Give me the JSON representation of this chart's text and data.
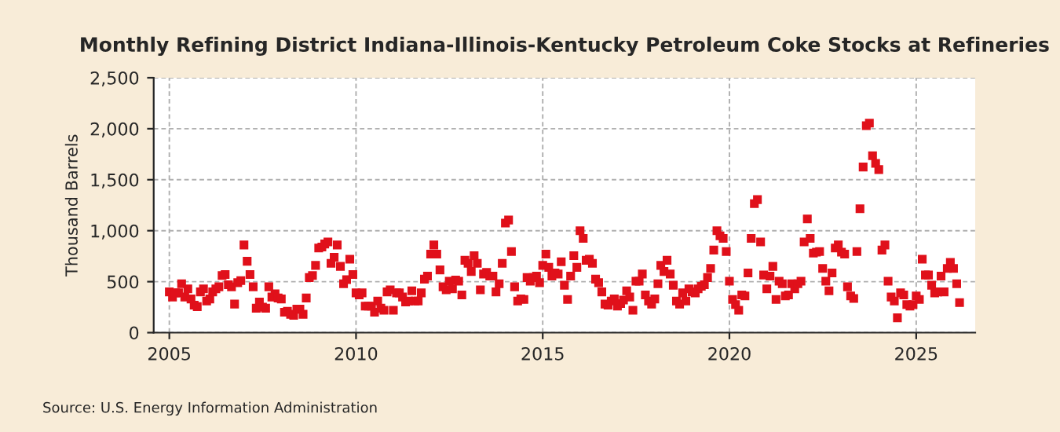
{
  "chart_data": {
    "type": "scatter",
    "title": "Monthly Refining District Indiana-Illinois-Kentucky Petroleum Coke Stocks at Refineries",
    "ylabel": "Thousand Barrels",
    "annotations": [
      "Source: U.S. Energy Information Administration"
    ],
    "x": [
      "2005-01",
      "2005-02",
      "2005-03",
      "2005-04",
      "2005-05",
      "2005-06",
      "2005-07",
      "2005-08",
      "2005-09",
      "2005-10",
      "2005-11",
      "2005-12",
      "2006-01",
      "2006-02",
      "2006-03",
      "2006-04",
      "2006-05",
      "2006-06",
      "2006-07",
      "2006-08",
      "2006-09",
      "2006-10",
      "2006-11",
      "2006-12",
      "2007-01",
      "2007-02",
      "2007-03",
      "2007-04",
      "2007-05",
      "2007-06",
      "2007-07",
      "2007-08",
      "2007-09",
      "2007-10",
      "2007-11",
      "2007-12",
      "2008-01",
      "2008-02",
      "2008-03",
      "2008-04",
      "2008-05",
      "2008-06",
      "2008-07",
      "2008-08",
      "2008-09",
      "2008-10",
      "2008-11",
      "2008-12",
      "2009-01",
      "2009-02",
      "2009-03",
      "2009-04",
      "2009-05",
      "2009-06",
      "2009-07",
      "2009-08",
      "2009-09",
      "2009-10",
      "2009-11",
      "2009-12",
      "2010-01",
      "2010-02",
      "2010-03",
      "2010-04",
      "2010-05",
      "2010-06",
      "2010-07",
      "2010-08",
      "2010-09",
      "2010-10",
      "2010-11",
      "2010-12",
      "2011-01",
      "2011-02",
      "2011-03",
      "2011-04",
      "2011-05",
      "2011-06",
      "2011-07",
      "2011-08",
      "2011-09",
      "2011-10",
      "2011-11",
      "2011-12",
      "2012-01",
      "2012-02",
      "2012-03",
      "2012-04",
      "2012-05",
      "2012-06",
      "2012-07",
      "2012-08",
      "2012-09",
      "2012-10",
      "2012-11",
      "2012-12",
      "2013-01",
      "2013-02",
      "2013-03",
      "2013-04",
      "2013-05",
      "2013-06",
      "2013-07",
      "2013-08",
      "2013-09",
      "2013-10",
      "2013-11",
      "2013-12",
      "2014-01",
      "2014-02",
      "2014-03",
      "2014-04",
      "2014-05",
      "2014-06",
      "2014-07",
      "2014-08",
      "2014-09",
      "2014-10",
      "2014-11",
      "2014-12",
      "2015-01",
      "2015-02",
      "2015-03",
      "2015-04",
      "2015-05",
      "2015-06",
      "2015-07",
      "2015-08",
      "2015-09",
      "2015-10",
      "2015-11",
      "2015-12",
      "2016-01",
      "2016-02",
      "2016-03",
      "2016-04",
      "2016-05",
      "2016-06",
      "2016-07",
      "2016-08",
      "2016-09",
      "2016-10",
      "2016-11",
      "2016-12",
      "2017-01",
      "2017-02",
      "2017-03",
      "2017-04",
      "2017-05",
      "2017-06",
      "2017-07",
      "2017-08",
      "2017-09",
      "2017-10",
      "2017-11",
      "2017-12",
      "2018-01",
      "2018-02",
      "2018-03",
      "2018-04",
      "2018-05",
      "2018-06",
      "2018-07",
      "2018-08",
      "2018-09",
      "2018-10",
      "2018-11",
      "2018-12",
      "2019-01",
      "2019-02",
      "2019-03",
      "2019-04",
      "2019-05",
      "2019-06",
      "2019-07",
      "2019-08",
      "2019-09",
      "2019-10",
      "2019-11",
      "2019-12",
      "2020-01",
      "2020-02",
      "2020-03",
      "2020-04",
      "2020-05",
      "2020-06",
      "2020-07",
      "2020-08",
      "2020-09",
      "2020-10",
      "2020-11",
      "2020-12",
      "2021-01",
      "2021-02",
      "2021-03",
      "2021-04",
      "2021-05",
      "2021-06",
      "2021-07",
      "2021-08",
      "2021-09",
      "2021-10",
      "2021-11",
      "2021-12",
      "2022-01",
      "2022-02",
      "2022-03",
      "2022-04",
      "2022-05",
      "2022-06",
      "2022-07",
      "2022-08",
      "2022-09",
      "2022-10",
      "2022-11",
      "2022-12",
      "2023-01",
      "2023-02",
      "2023-03",
      "2023-04",
      "2023-05",
      "2023-06",
      "2023-07",
      "2023-08",
      "2023-09",
      "2023-10",
      "2023-11",
      "2023-12",
      "2024-01",
      "2024-02",
      "2024-03",
      "2024-04",
      "2024-05",
      "2024-06",
      "2024-07",
      "2024-08",
      "2024-09",
      "2024-10",
      "2024-11",
      "2024-12",
      "2025-01",
      "2025-02",
      "2025-03",
      "2025-04",
      "2025-05",
      "2025-06",
      "2025-07",
      "2025-08",
      "2025-09",
      "2025-10",
      "2025-11",
      "2025-12",
      "2026-01",
      "2026-02",
      "2026-03"
    ],
    "series": [
      {
        "color": "#e0101a",
        "values": [
          400,
          350,
          390,
          390,
          480,
          350,
          430,
          330,
          270,
          255,
          400,
          430,
          310,
          330,
          400,
          430,
          450,
          560,
          570,
          470,
          450,
          280,
          490,
          510,
          860,
          700,
          570,
          450,
          240,
          300,
          250,
          240,
          450,
          350,
          380,
          340,
          330,
          200,
          210,
          180,
          170,
          230,
          230,
          180,
          340,
          540,
          560,
          660,
          830,
          840,
          870,
          890,
          680,
          740,
          860,
          650,
          480,
          520,
          720,
          570,
          390,
          370,
          390,
          260,
          260,
          260,
          200,
          310,
          240,
          220,
          400,
          420,
          220,
          390,
          390,
          350,
          300,
          310,
          410,
          310,
          310,
          390,
          525,
          555,
          770,
          860,
          770,
          615,
          450,
          420,
          505,
          430,
          515,
          505,
          370,
          710,
          680,
          600,
          755,
          680,
          420,
          575,
          590,
          555,
          555,
          400,
          480,
          680,
          1075,
          1105,
          795,
          450,
          310,
          330,
          325,
          540,
          505,
          540,
          555,
          490,
          660,
          770,
          640,
          555,
          585,
          575,
          695,
          465,
          325,
          555,
          755,
          640,
          1000,
          925,
          710,
          720,
          680,
          525,
          490,
          400,
          280,
          270,
          310,
          330,
          260,
          285,
          320,
          410,
          350,
          220,
          505,
          505,
          575,
          370,
          310,
          280,
          330,
          480,
          660,
          600,
          710,
          575,
          465,
          310,
          280,
          390,
          310,
          430,
          400,
          390,
          430,
          455,
          470,
          540,
          630,
          810,
          1000,
          950,
          925,
          795,
          505,
          325,
          275,
          220,
          370,
          360,
          585,
          925,
          1265,
          1305,
          890,
          565,
          430,
          555,
          650,
          325,
          505,
          480,
          360,
          370,
          480,
          430,
          480,
          505,
          890,
          1115,
          925,
          780,
          790,
          795,
          630,
          505,
          410,
          585,
          830,
          860,
          790,
          770,
          450,
          360,
          335,
          795,
          1215,
          1625,
          2030,
          2055,
          1735,
          1660,
          1600,
          810,
          860,
          505,
          350,
          310,
          145,
          390,
          370,
          275,
          260,
          275,
          360,
          325,
          720,
          565,
          565,
          465,
          390,
          400,
          555,
          400,
          630,
          690,
          630,
          480,
          295
        ]
      }
    ],
    "marker": "square",
    "grid": true,
    "legend": false,
    "xlim": [
      "2004-08",
      "2026-08"
    ],
    "xticks": [
      {
        "value": "2005-01",
        "label": "2005"
      },
      {
        "value": "2010-01",
        "label": "2010"
      },
      {
        "value": "2015-01",
        "label": "2015"
      },
      {
        "value": "2020-01",
        "label": "2020"
      },
      {
        "value": "2025-01",
        "label": "2025"
      }
    ],
    "ylim": [
      0,
      2500
    ],
    "yticks": [
      {
        "value": 0,
        "label": "0"
      },
      {
        "value": 500,
        "label": "500"
      },
      {
        "value": 1000,
        "label": "1,000"
      },
      {
        "value": 1500,
        "label": "1,500"
      },
      {
        "value": 2000,
        "label": "2,000"
      },
      {
        "value": 2500,
        "label": "2,500"
      }
    ]
  }
}
